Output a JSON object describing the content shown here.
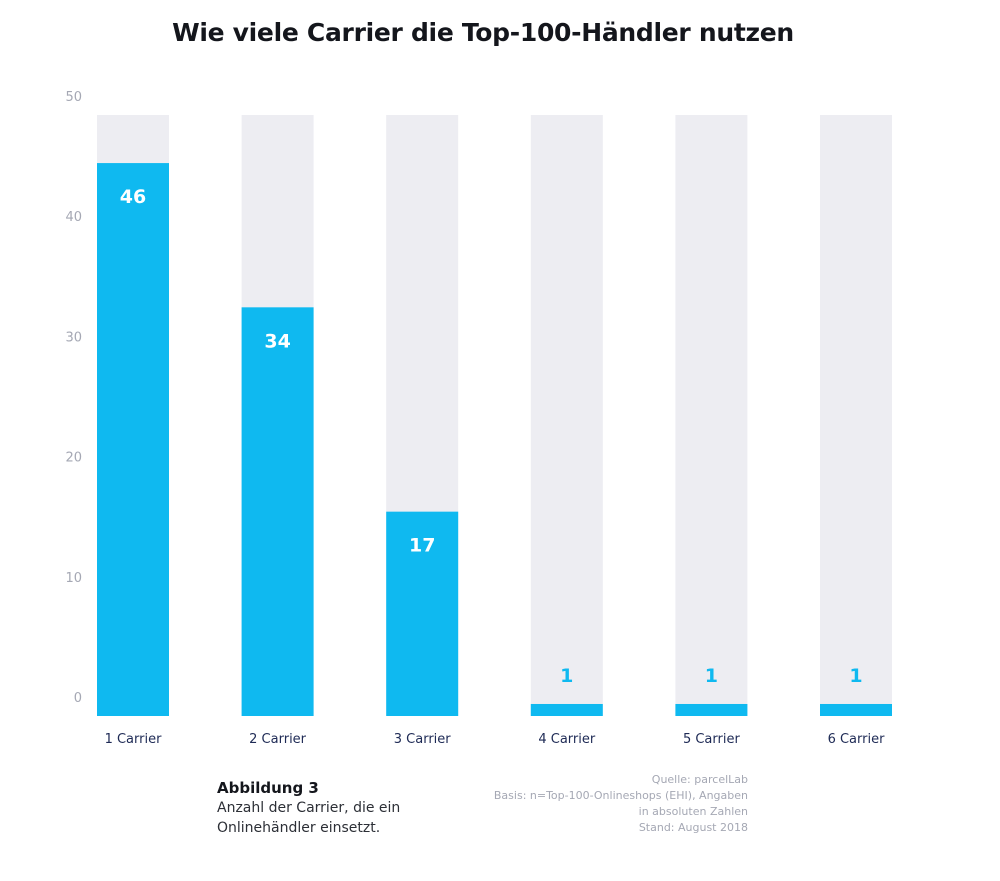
{
  "title": "Wie viele Carrier die Top-100-Händler nutzen",
  "chart_data": {
    "type": "bar",
    "categories": [
      "1 Carrier",
      "2 Carrier",
      "3 Carrier",
      "4 Carrier",
      "5 Carrier",
      "6 Carrier"
    ],
    "values": [
      46,
      34,
      17,
      1,
      1,
      1
    ],
    "data_labels": [
      "46",
      "34",
      "17",
      "1",
      "1",
      "1"
    ],
    "ylim": [
      0,
      50
    ],
    "yticks": [
      0,
      10,
      20,
      30,
      40,
      50
    ],
    "grid": false,
    "colors": {
      "bar": "#0fb9f0",
      "track": "#ededf2",
      "axis_text": "#a5a8b4",
      "category_text": "#1e2a55",
      "label_inside": "#ffffff"
    }
  },
  "caption": {
    "heading": "Abbildung 3",
    "text": "Anzahl der Carrier, die ein\nOnlinehändler einsetzt."
  },
  "source": {
    "line1": "Quelle: parcelLab",
    "line2": "Basis: n=Top-100-Onlineshops (EHI), Angaben",
    "line3": "in absoluten Zahlen",
    "line4": "Stand: August 2018"
  }
}
